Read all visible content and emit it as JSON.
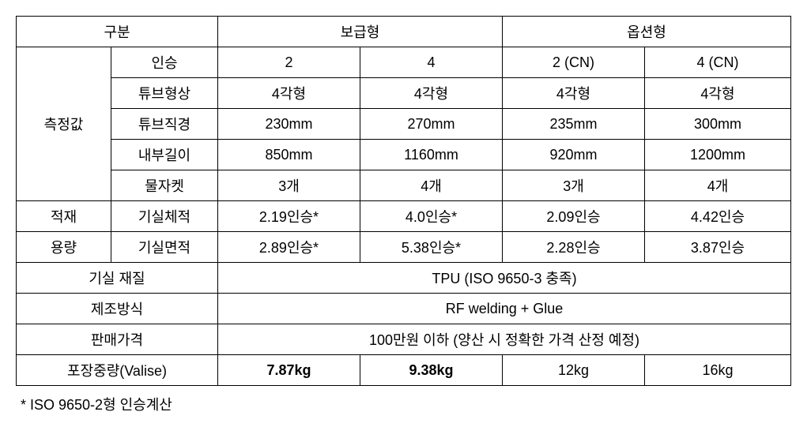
{
  "table": {
    "header": {
      "col1": "구분",
      "col2": "보급형",
      "col3": "옵션형"
    },
    "measure_group": "측정값",
    "rows": {
      "r1": {
        "label": "인승",
        "a": "2",
        "b": "4",
        "c": "2 (CN)",
        "d": "4 (CN)"
      },
      "r2": {
        "label": "튜브형상",
        "a": "4각형",
        "b": "4각형",
        "c": "4각형",
        "d": "4각형"
      },
      "r3": {
        "label": "튜브직경",
        "a": "230mm",
        "b": "270mm",
        "c": "235mm",
        "d": "300mm"
      },
      "r4": {
        "label": "내부길이",
        "a": "850mm",
        "b": "1160mm",
        "c": "920mm",
        "d": "1200mm"
      },
      "r5": {
        "label": "물자켓",
        "a": "3개",
        "b": "4개",
        "c": "3개",
        "d": "4개"
      }
    },
    "capacity_group_line1": "적재",
    "capacity_group_line2": "용량",
    "cap_rows": {
      "c1": {
        "label": "기실체적",
        "a": "2.19인승*",
        "b": "4.0인승*",
        "c": "2.09인승",
        "d": "4.42인승"
      },
      "c2": {
        "label": "기실면적",
        "a": "2.89인승*",
        "b": "5.38인승*",
        "c": "2.28인승",
        "d": "3.87인승"
      }
    },
    "material_label": "기실 재질",
    "material_value": "TPU   (ISO 9650-3 충족)",
    "method_label": "제조방식",
    "method_value": "RF welding + Glue",
    "price_label": "판매가격",
    "price_value": "100만원 이하 (양산 시 정확한 가격 산정 예정)",
    "weight_label": "포장중량(Valise)",
    "weight": {
      "a": "7.87kg",
      "b": "9.38kg",
      "c": "12kg",
      "d": "16kg"
    }
  },
  "footnote": "* ISO 9650-2형 인승계산",
  "colors": {
    "border": "#000000",
    "text": "#000000",
    "background": "#ffffff"
  }
}
